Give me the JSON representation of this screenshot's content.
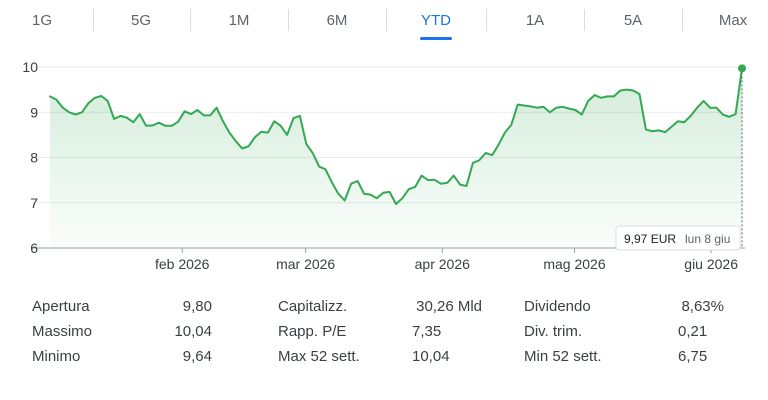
{
  "range_tabs": [
    {
      "label": "1G",
      "active": false
    },
    {
      "label": "5G",
      "active": false
    },
    {
      "label": "1M",
      "active": false
    },
    {
      "label": "6M",
      "active": false
    },
    {
      "label": "YTD",
      "active": true
    },
    {
      "label": "1A",
      "active": false
    },
    {
      "label": "5A",
      "active": false
    },
    {
      "label": "Max",
      "active": false
    }
  ],
  "colors": {
    "line": "#34a853",
    "active_tab": "#1a73e8",
    "grid": "#e8eaed"
  },
  "tooltip": {
    "price": "9,97 EUR",
    "date": "lun 8 giu"
  },
  "chart_data": {
    "type": "area",
    "ylim": [
      6,
      10
    ],
    "yticks": [
      "6",
      "7",
      "8",
      "9",
      "10"
    ],
    "xlabels": [
      {
        "label": "feb 2026",
        "at": "2026-02-01"
      },
      {
        "label": "mar 2026",
        "at": "2026-03-01"
      },
      {
        "label": "apr 2026",
        "at": "2026-04-01"
      },
      {
        "label": "mag 2026",
        "at": "2026-05-01"
      },
      {
        "label": "giu 2026",
        "at": "2026-06-01"
      }
    ],
    "x_start": "2026-01-02",
    "x_end": "2026-06-08",
    "series": [
      {
        "values": [
          9.35,
          9.28,
          9.1,
          9.0,
          8.95,
          9.0,
          9.2,
          9.32,
          9.36,
          9.25,
          8.85,
          8.92,
          8.88,
          8.78,
          8.96,
          8.7,
          8.71,
          8.77,
          8.7,
          8.7,
          8.79,
          9.02,
          8.96,
          9.05,
          8.93,
          8.93,
          9.1,
          8.8,
          8.55,
          8.36,
          8.2,
          8.25,
          8.45,
          8.57,
          8.55,
          8.8,
          8.7,
          8.5,
          8.87,
          8.92,
          8.3,
          8.1,
          7.8,
          7.74,
          7.45,
          7.2,
          7.05,
          7.42,
          7.48,
          7.2,
          7.18,
          7.1,
          7.22,
          7.24,
          6.97,
          7.1,
          7.3,
          7.35,
          7.6,
          7.5,
          7.51,
          7.42,
          7.44,
          7.6,
          7.4,
          7.37,
          7.88,
          7.94,
          8.1,
          8.05,
          8.28,
          8.55,
          8.72,
          9.17,
          9.15,
          9.13,
          9.1,
          9.12,
          9.0,
          9.1,
          9.12,
          9.08,
          9.05,
          8.95,
          9.25,
          9.38,
          9.32,
          9.35,
          9.35,
          9.48,
          9.5,
          9.48,
          9.4,
          8.62,
          8.58,
          8.6,
          8.56,
          8.68,
          8.8,
          8.78,
          8.92,
          9.1,
          9.25,
          9.1,
          9.1,
          8.95,
          8.9,
          8.96,
          9.97
        ]
      }
    ]
  },
  "stats": {
    "col1": [
      {
        "label": "Apertura",
        "value": "9,80"
      },
      {
        "label": "Massimo",
        "value": "10,04"
      },
      {
        "label": "Minimo",
        "value": "9,64"
      }
    ],
    "col2": [
      {
        "label": "Capitalizz.",
        "value": "30,26 Mld"
      },
      {
        "label": "Rapp. P/E",
        "value": "7,35"
      },
      {
        "label": "Max 52 sett.",
        "value": "10,04"
      }
    ],
    "col3": [
      {
        "label": "Dividendo",
        "value": "8,63%"
      },
      {
        "label": "Div. trim.",
        "value": "0,21"
      },
      {
        "label": "Min 52 sett.",
        "value": "6,75"
      }
    ]
  }
}
